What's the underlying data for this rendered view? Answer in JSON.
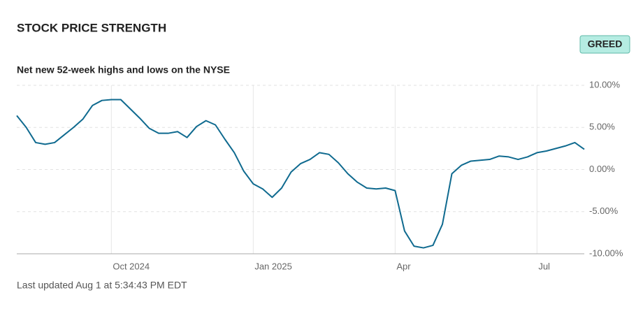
{
  "chart_data": {
    "type": "line",
    "title": "STOCK PRICE STRENGTH",
    "rating": "GREED",
    "subtitle": "Net new 52-week highs and lows on the NYSE",
    "footer": "Last updated Aug 1 at 5:34:43 PM EDT",
    "categories": [
      null,
      null,
      null,
      null,
      null,
      null,
      null,
      null,
      null,
      null,
      "Oct 2024",
      null,
      null,
      null,
      null,
      null,
      null,
      null,
      null,
      null,
      null,
      null,
      null,
      null,
      null,
      "Jan 2025",
      null,
      null,
      null,
      null,
      null,
      null,
      null,
      null,
      null,
      null,
      null,
      null,
      null,
      null,
      "Apr",
      null,
      null,
      null,
      null,
      null,
      null,
      null,
      null,
      null,
      null,
      null,
      null,
      null,
      null,
      "Jul",
      null,
      null,
      null,
      null,
      null
    ],
    "series": [
      {
        "color": "#0f6a8f",
        "values": [
          6.4,
          5.0,
          3.2,
          3.0,
          3.2,
          4.1,
          5.0,
          6.0,
          7.6,
          8.2,
          8.3,
          8.3,
          7.2,
          6.1,
          4.9,
          4.3,
          4.3,
          4.5,
          3.8,
          5.1,
          5.8,
          5.3,
          3.6,
          2.0,
          -0.2,
          -1.7,
          -2.3,
          -3.3,
          -2.2,
          -0.3,
          0.7,
          1.2,
          2.0,
          1.8,
          0.8,
          -0.5,
          -1.5,
          -2.2,
          -2.3,
          -2.2,
          -2.5,
          -7.3,
          -9.1,
          -9.3,
          -9.0,
          -6.5,
          -0.5,
          0.5,
          1.0,
          1.1,
          1.2,
          1.6,
          1.5,
          1.2,
          1.5,
          2.0,
          2.2,
          2.5,
          2.8,
          3.2,
          2.4
        ]
      }
    ],
    "ylim": [
      -10,
      10
    ],
    "yticks": [
      {
        "value": 10,
        "label": "10.00%"
      },
      {
        "value": 5,
        "label": "5.00%"
      },
      {
        "value": 0,
        "label": "0.00%"
      },
      {
        "value": -5,
        "label": "-5.00%"
      },
      {
        "value": -10,
        "label": "-10.00%"
      }
    ],
    "grid": true
  }
}
